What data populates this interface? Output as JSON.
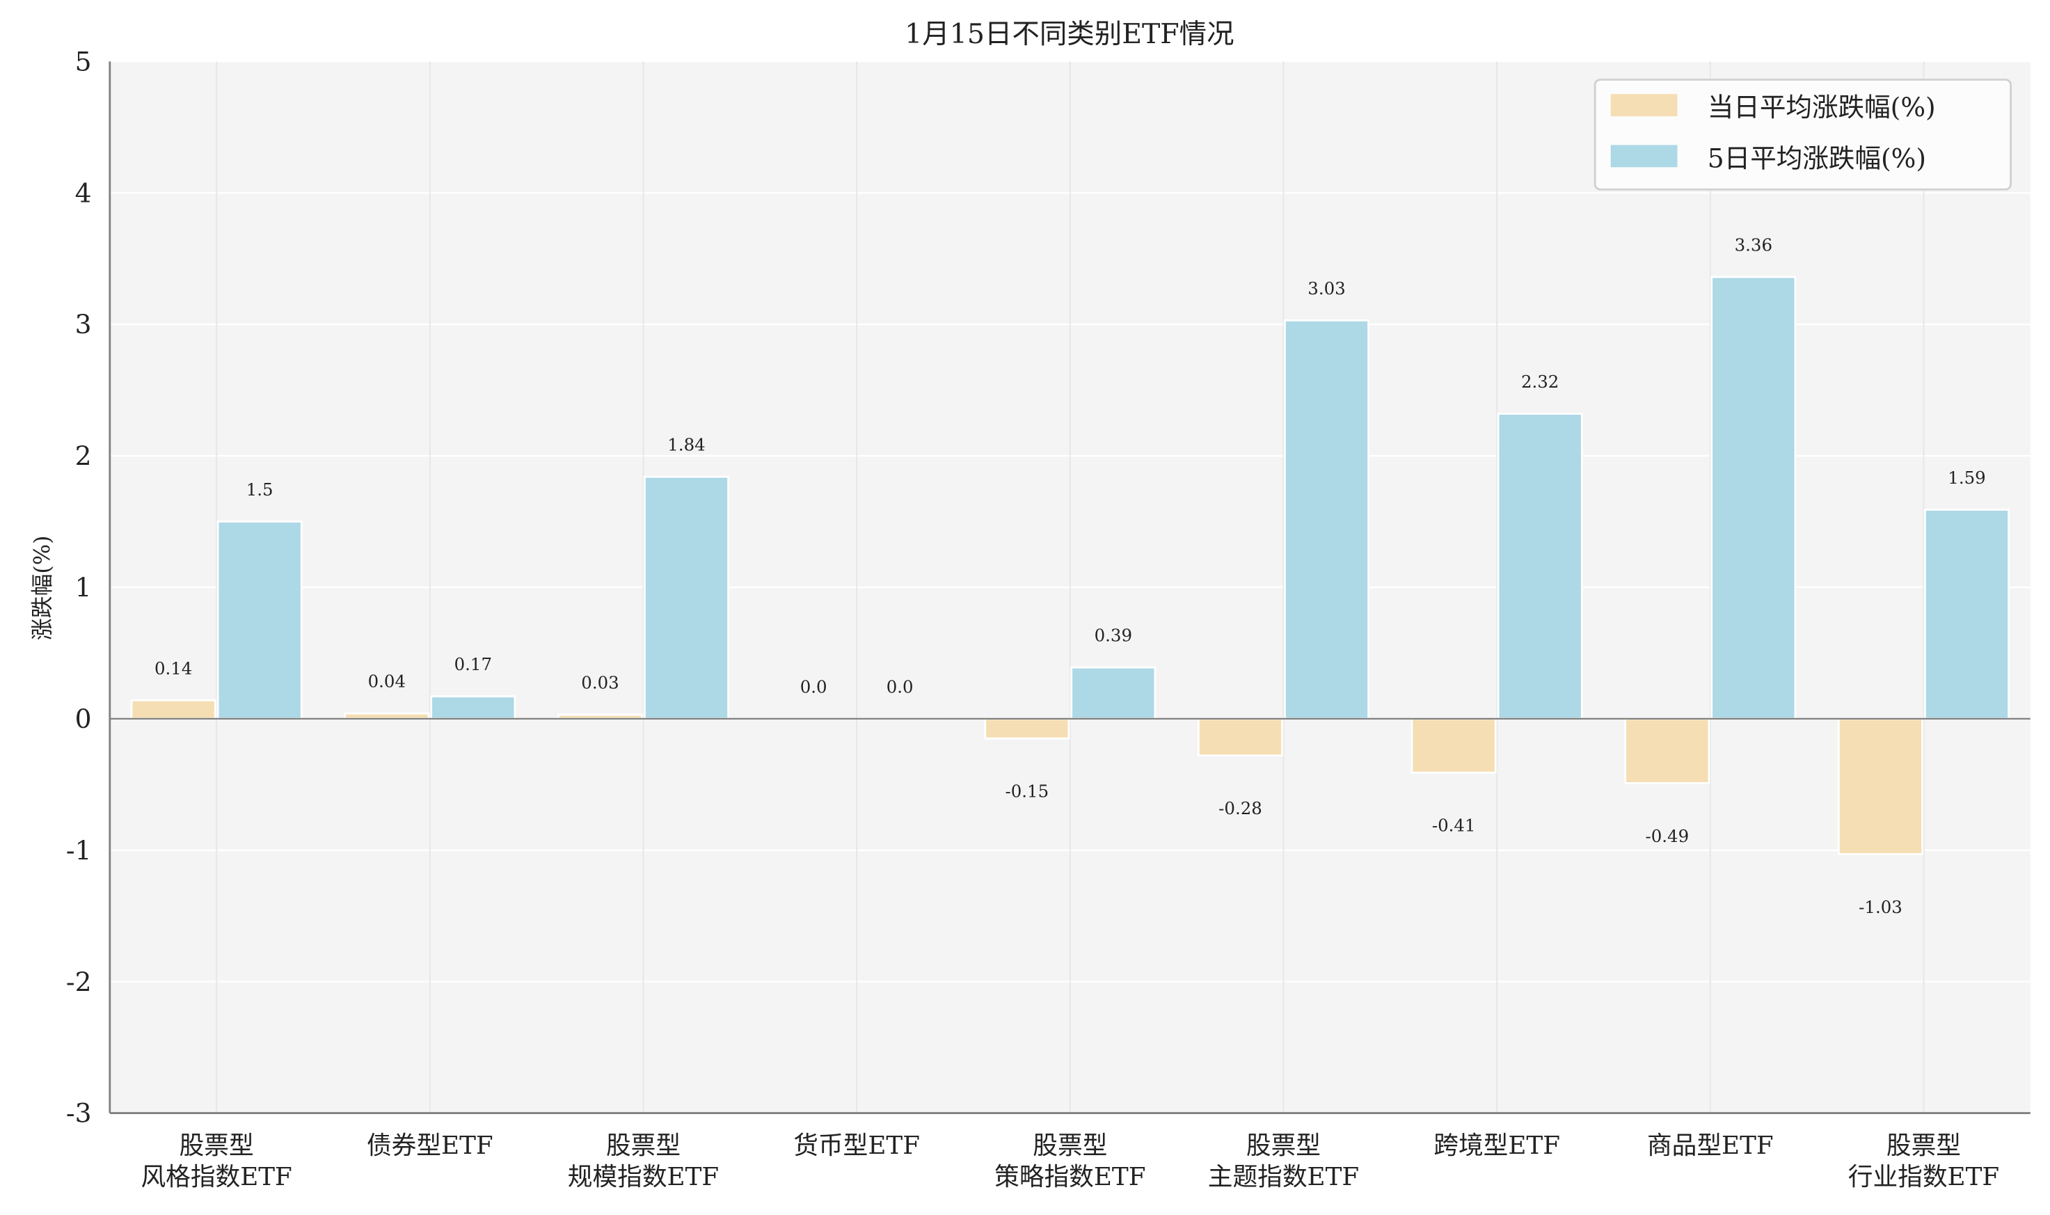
{
  "chart_data": {
    "type": "bar",
    "title": "1月15日不同类别ETF情况",
    "xlabel": "",
    "ylabel": "涨跌幅(%)",
    "ylim": [
      -3,
      5
    ],
    "yticks": [
      "5",
      "4",
      "3",
      "2",
      "1",
      "0",
      "-1",
      "-2",
      "-3"
    ],
    "grid": true,
    "legend_position": "top-right",
    "categories": [
      [
        "股票型",
        "风格指数ETF"
      ],
      [
        "债券型ETF"
      ],
      [
        "股票型",
        "规模指数ETF"
      ],
      [
        "货币型ETF"
      ],
      [
        "股票型",
        "策略指数ETF"
      ],
      [
        "股票型",
        "主题指数ETF"
      ],
      [
        "跨境型ETF"
      ],
      [
        "商品型ETF"
      ],
      [
        "股票型",
        "行业指数ETF"
      ]
    ],
    "series": [
      {
        "name": "当日平均涨跌幅(%)",
        "color": "#f5deb3",
        "values": [
          0.14,
          0.04,
          0.03,
          0.0,
          -0.15,
          -0.28,
          -0.41,
          -0.49,
          -1.03
        ],
        "labels": [
          "0.14",
          "0.04",
          "0.03",
          "0.0",
          "-0.15",
          "-0.28",
          "-0.41",
          "-0.49",
          "-1.03"
        ]
      },
      {
        "name": "5日平均涨跌幅(%)",
        "color": "#add8e6",
        "values": [
          1.5,
          0.17,
          1.84,
          0.0,
          0.39,
          3.03,
          2.32,
          3.36,
          1.59
        ],
        "labels": [
          "1.5",
          "0.17",
          "1.84",
          "0.0",
          "0.39",
          "3.03",
          "2.32",
          "3.36",
          "1.59"
        ]
      }
    ],
    "colors": {
      "plot_bg": "#f4f4f4",
      "axis": "#808080",
      "zero_line": "#808080"
    }
  }
}
